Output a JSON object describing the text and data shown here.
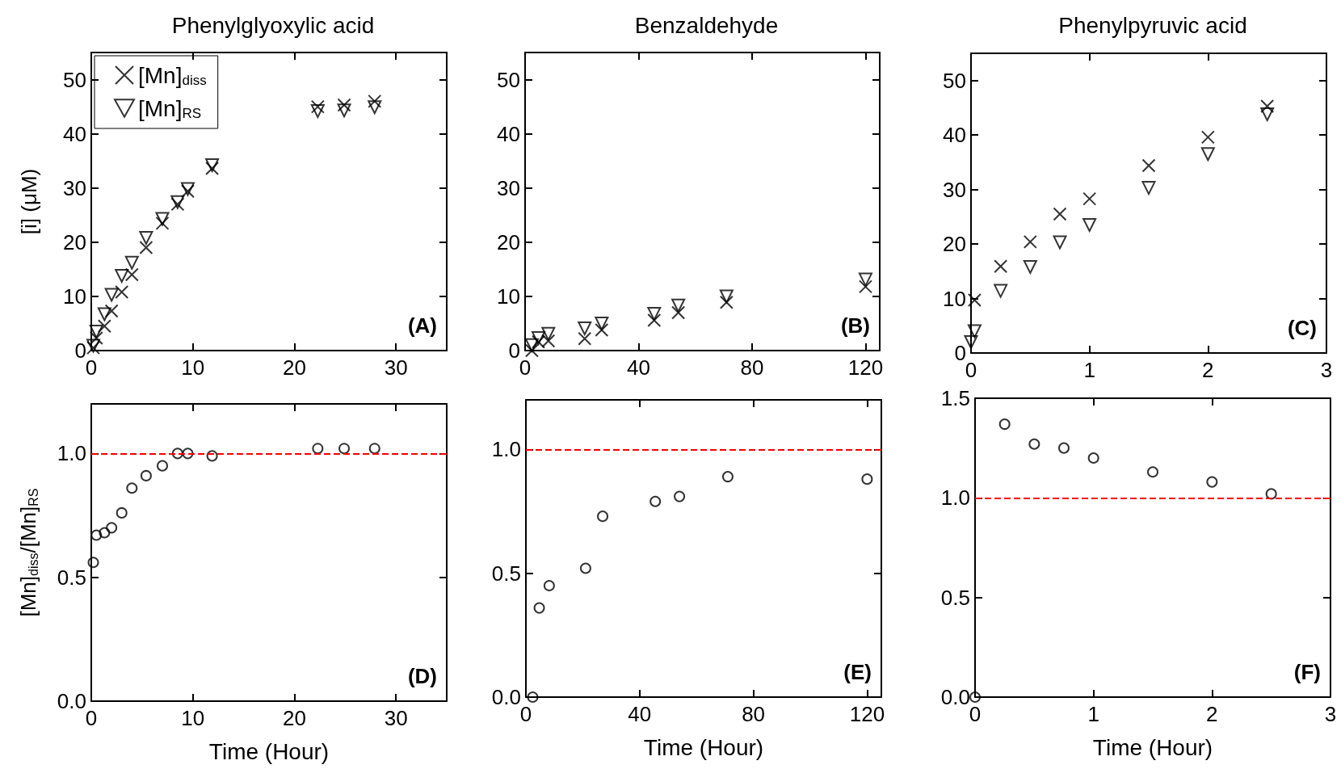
{
  "chart_data": [
    {
      "type": "scatter",
      "title": "Phenylglyoxylic acid",
      "ylabel": "[i] (μM)",
      "x": [
        0.2,
        0.5,
        1.3,
        2.0,
        3.0,
        4.0,
        5.4,
        7.0,
        8.5,
        9.5,
        11.9,
        22.3,
        24.9,
        27.9
      ],
      "series": [
        {
          "name": "[Mn]$_{diss}$",
          "color": "#000000",
          "marker": "cross",
          "values": [
            0.5,
            2.3,
            4.5,
            7.3,
            10.8,
            14,
            19,
            23.5,
            27,
            29.4,
            33.6,
            45,
            45.3,
            46
          ]
        },
        {
          "name": "[Mn]$_{RS}$",
          "color": "#000000",
          "marker": "triangle",
          "values": [
            0.9,
            3.5,
            6.7,
            10.3,
            13.8,
            16.2,
            20.8,
            24.3,
            27.4,
            29.8,
            34.2,
            44.2,
            44.3,
            44.9
          ]
        }
      ],
      "xlim": [
        0,
        35
      ],
      "xticks": [
        0,
        10,
        20,
        30
      ],
      "ylim": [
        0,
        55
      ],
      "yticks": [
        0,
        10,
        20,
        30,
        40,
        50
      ],
      "legend": "top left",
      "grid": false,
      "annotations": [
        "(A)"
      ]
    },
    {
      "type": "scatter",
      "title": "Benzaldehyde",
      "x": [
        2.4,
        4.7,
        8.2,
        21,
        27,
        45.5,
        54,
        71,
        120
      ],
      "series": [
        {
          "color": "#000000",
          "marker": "cross",
          "values": [
            0,
            1.6,
            1.8,
            2.2,
            3.8,
            5.6,
            7.0,
            8.9,
            11.8
          ]
        },
        {
          "color": "#000000",
          "marker": "triangle",
          "values": [
            1.0,
            2.3,
            3.1,
            4.1,
            5.0,
            6.8,
            8.3,
            10.0,
            13.1
          ]
        }
      ],
      "xlim": [
        0,
        125
      ],
      "xticks": [
        0,
        40,
        80,
        120
      ],
      "ylim": [
        0,
        55
      ],
      "yticks": [
        0,
        10,
        20,
        30,
        40,
        50
      ],
      "grid": false,
      "annotations": [
        "(B)"
      ]
    },
    {
      "type": "scatter",
      "title": "Phenylpyruvic acid",
      "x": [
        0,
        0.03,
        0.25,
        0.5,
        0.75,
        1,
        1.5,
        2,
        2.5
      ],
      "series": [
        {
          "color": "#000000",
          "marker": "cross",
          "values": [
            null,
            9.7,
            15.9,
            20.4,
            25.5,
            28.3,
            34.4,
            39.6,
            45.3
          ]
        },
        {
          "color": "#000000",
          "marker": "triangle",
          "values": [
            2,
            4.0,
            11.4,
            15.8,
            20.3,
            23.5,
            30.3,
            36.5,
            43.8
          ]
        }
      ],
      "xlim": [
        0,
        3
      ],
      "xticks": [
        0,
        1,
        2,
        3
      ],
      "ylim": [
        0,
        55
      ],
      "yticks": [
        0,
        10,
        20,
        30,
        40,
        50
      ],
      "grid": false,
      "annotations": [
        "(C)"
      ]
    },
    {
      "type": "scatter",
      "xlabel": "Time (Hour)",
      "ylabel": "[Mn]$_{diss}$/[Mn]$_{RS}$",
      "x": [
        0.2,
        0.5,
        1.3,
        2.0,
        3.0,
        4.0,
        5.4,
        7.0,
        8.5,
        9.5,
        11.9,
        22.3,
        24.9,
        27.9
      ],
      "series": [
        {
          "color": "#000000",
          "marker": "circle",
          "values": [
            0.56,
            0.67,
            0.68,
            0.7,
            0.76,
            0.86,
            0.91,
            0.95,
            1.0,
            1.0,
            0.99,
            1.02,
            1.02,
            1.02
          ]
        }
      ],
      "xlim": [
        0,
        35
      ],
      "xticks": [
        0,
        10,
        20,
        30
      ],
      "ylim": [
        0,
        1.2
      ],
      "yticks": [
        {
          "value": 0,
          "label": "0.0"
        },
        {
          "value": 0.5,
          "label": "0.5"
        },
        {
          "value": 1,
          "label": "1.0"
        }
      ],
      "grid": false,
      "ref_lines": [
        {
          "axis": "y",
          "value": 1,
          "color": "#ff0000",
          "line_style": "dashed"
        }
      ],
      "annotations": [
        "(D)"
      ]
    },
    {
      "type": "scatter",
      "xlabel": "Time (Hour)",
      "x": [
        2.4,
        4.7,
        8.2,
        21,
        27,
        45.5,
        54,
        71,
        120
      ],
      "series": [
        {
          "color": "#000000",
          "marker": "circle",
          "values": [
            0,
            0.36,
            0.45,
            0.52,
            0.73,
            0.79,
            0.81,
            0.89,
            0.88
          ]
        }
      ],
      "xlim": [
        0,
        125
      ],
      "xticks": [
        0,
        40,
        80,
        120
      ],
      "ylim": [
        0,
        1.2
      ],
      "yticks": [
        {
          "value": 0,
          "label": "0.0"
        },
        {
          "value": 0.5,
          "label": "0.5"
        },
        {
          "value": 1,
          "label": "1.0"
        }
      ],
      "grid": false,
      "ref_lines": [
        {
          "axis": "y",
          "value": 1,
          "color": "#ff0000",
          "line_style": "dashed"
        }
      ],
      "annotations": [
        "(E)"
      ]
    },
    {
      "type": "scatter",
      "xlabel": "Time (Hour)",
      "x": [
        0,
        0.25,
        0.5,
        0.75,
        1,
        1.5,
        2,
        2.5
      ],
      "series": [
        {
          "color": "#000000",
          "marker": "circle",
          "values": [
            0,
            1.37,
            1.27,
            1.25,
            1.2,
            1.13,
            1.08,
            1.02
          ]
        }
      ],
      "xlim": [
        0,
        3
      ],
      "xticks": [
        0,
        1,
        2,
        3
      ],
      "ylim": [
        0,
        1.5
      ],
      "yticks": [
        {
          "value": 0,
          "label": "0.0"
        },
        {
          "value": 0.5,
          "label": "0.5"
        },
        {
          "value": 1,
          "label": "1.0"
        },
        {
          "value": 1.5,
          "label": "1.5"
        }
      ],
      "grid": false,
      "ref_lines": [
        {
          "axis": "y",
          "value": 1,
          "color": "#ff0000",
          "line_style": "dashed"
        }
      ],
      "annotations": [
        "(F)"
      ]
    }
  ]
}
